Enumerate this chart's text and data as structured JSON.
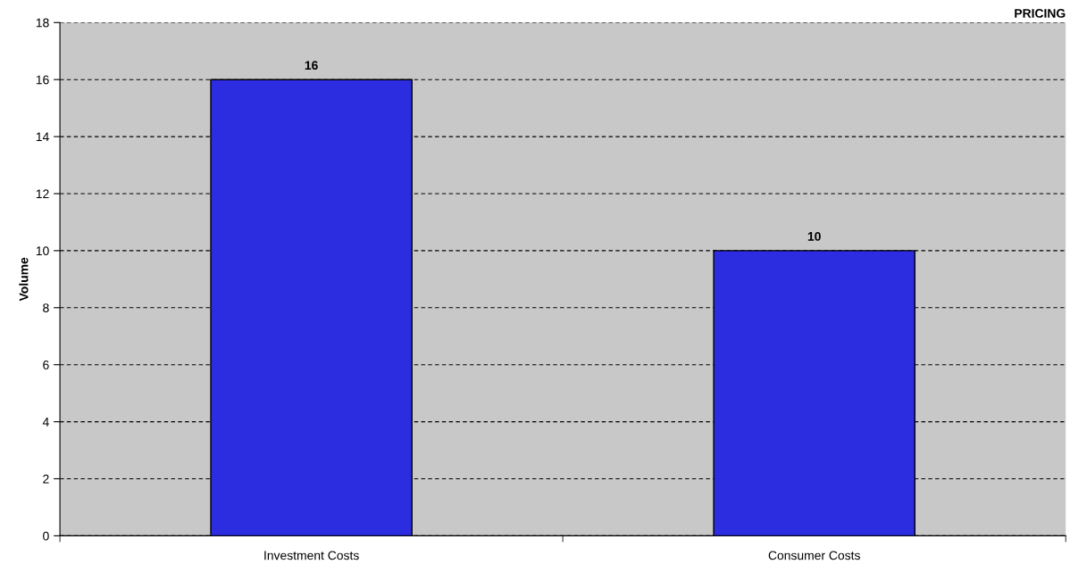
{
  "chart_data": {
    "type": "bar",
    "title": "PRICING",
    "ylabel": "Volume",
    "categories": [
      "Investment Costs",
      "Consumer Costs"
    ],
    "values": [
      16,
      10
    ],
    "color": "#2c2ce0",
    "ylim": [
      0,
      18
    ],
    "yticks": [
      0,
      2,
      4,
      6,
      8,
      10,
      12,
      14,
      16,
      18
    ],
    "grid": "y",
    "data_labels": true
  }
}
